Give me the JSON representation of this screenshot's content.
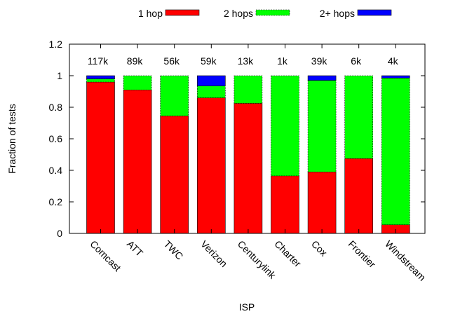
{
  "chart_data": {
    "type": "bar",
    "stacked": true,
    "xlabel": "ISP",
    "ylabel": "Fraction of tests",
    "ylim": [
      0,
      1.2
    ],
    "yticks": [
      "0",
      "0.2",
      "0.4",
      "0.6",
      "0.8",
      "1",
      "1.2"
    ],
    "grid": false,
    "legend_position": "top",
    "categories": [
      "Comcast",
      "ATT",
      "TWC",
      "Verizon",
      "Centurylink",
      "Charter",
      "Cox",
      "Frontier",
      "Windstream"
    ],
    "test_counts": [
      "117k",
      "89k",
      "56k",
      "59k",
      "13k",
      "1k",
      "39k",
      "6k",
      "4k"
    ],
    "series": [
      {
        "name": "1 hop",
        "color": "#ff0000",
        "values": [
          0.96,
          0.91,
          0.745,
          0.86,
          0.825,
          0.365,
          0.39,
          0.475,
          0.055
        ]
      },
      {
        "name": "2 hops",
        "color": "#00ff00",
        "values": [
          0.02,
          0.09,
          0.255,
          0.075,
          0.175,
          0.635,
          0.58,
          0.525,
          0.93
        ]
      },
      {
        "name": "2+ hops",
        "color": "#0000ff",
        "values": [
          0.02,
          0.0,
          0.0,
          0.065,
          0.0,
          0.0,
          0.03,
          0.0,
          0.015
        ]
      }
    ]
  }
}
